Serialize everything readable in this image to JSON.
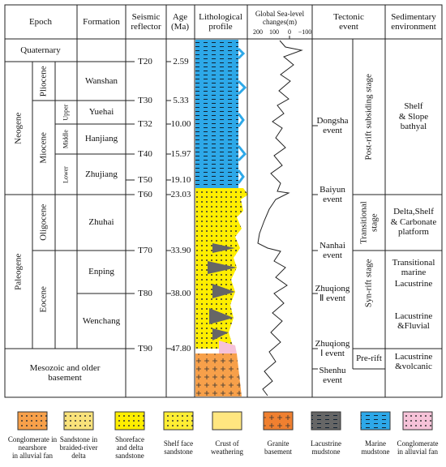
{
  "headers": [
    "Epoch",
    "Formation",
    "Seismic\nreflector",
    "Age\n(Ma)",
    "Lithological\nprofile",
    "Global Sea-level\nchanges(m)",
    "Tectonic\nevent",
    "Sedimentary\nenvironment"
  ],
  "sea_level_scale": [
    "200",
    "100",
    "0",
    "−100"
  ],
  "epochs": {
    "quaternary": "Quaternary",
    "neogene": "Neogene",
    "paleogene": "Paleogene",
    "pliocene": "Pliocene",
    "miocene": "Miocene",
    "upper": "Upper",
    "middle": "Middle",
    "lower": "Lower",
    "oligocene": "Oligocene",
    "eocene": "Eocene",
    "basement": "Mesozoic and older\nbasement"
  },
  "formations": [
    "Wanshan",
    "Yuehai",
    "Hanjiang",
    "Zhujiang",
    "Zhuhai",
    "Enping",
    "Wenchang"
  ],
  "reflectors": [
    {
      "name": "T20",
      "age": "2.59"
    },
    {
      "name": "T30",
      "age": "5.33"
    },
    {
      "name": "T32",
      "age": "10.00"
    },
    {
      "name": "T40",
      "age": "15.97"
    },
    {
      "name": "T50",
      "age": "19.10"
    },
    {
      "name": "T60",
      "age": "23.03"
    },
    {
      "name": "T70",
      "age": "33.90"
    },
    {
      "name": "T80",
      "age": "38.00"
    },
    {
      "name": "T90",
      "age": "47.80"
    }
  ],
  "events": [
    "Dongsha\nevent",
    "Baiyun\nevent",
    "Nanhai\nevent",
    "Zhuqiong\nⅡ event",
    "Zhuqiong\nⅠ event",
    "Shenhu\nevent"
  ],
  "stages": [
    "Post-rift subsiding stage",
    "Transitional\nstage",
    "Syn-rift stage",
    "Pre-rift"
  ],
  "environments": [
    "Shelf\n& Slope\nbathyal",
    "Delta,Shelf\n& Carbonate\nplatform",
    "Transitional\nmarine",
    "Lacustrine",
    "Lacustrine\n&Fluvial",
    "Lacustrine\n&volcanic"
  ],
  "legend": [
    "Conglomerate in nearshore\nin alluvial fan",
    "Sandstone in\nbraided-river\ndelta",
    "Shoreface\nand delta\nsandstone",
    "Shelf face\nsandstone",
    "Crust of\nweathering",
    "Granite\nbasement",
    "Lacustrine\nmudstone",
    "Marine\nmudstone",
    "Conglomerate\nin alluvial fan"
  ]
}
